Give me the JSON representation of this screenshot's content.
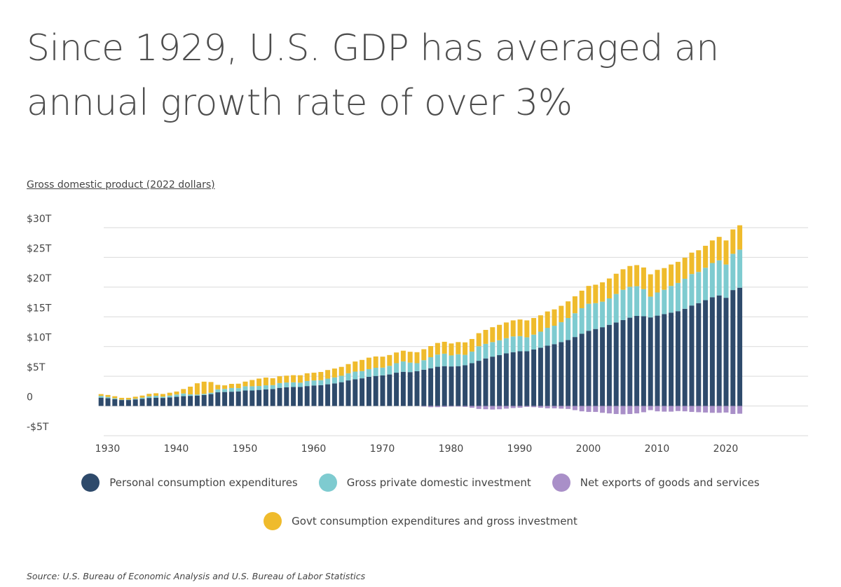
{
  "header": {
    "title": "Since 1929, U.S. GDP has averaged an annual growth rate of over 3%",
    "subtitle": "Gross domestic product (2022 dollars)"
  },
  "footer": {
    "source": "Source: U.S. Bureau of Economic Analysis and U.S. Bureau of Labor Statistics"
  },
  "colors": {
    "pce": "#2e4a6b",
    "investment": "#7ecbd0",
    "net_exports": "#a98fc8",
    "govt": "#efbb2c",
    "grid": "#d9d9d9",
    "axis_text": "#444444"
  },
  "chart_data": {
    "type": "bar",
    "stacked": true,
    "y_tick_labels": [
      "$30T",
      "$25T",
      "$20T",
      "$15T",
      "$10T",
      "$5T",
      "0",
      "-$5T"
    ],
    "y_tick_values": [
      30,
      25,
      20,
      15,
      10,
      5,
      0,
      -5
    ],
    "x_tick_labels": [
      "1930",
      "1940",
      "1950",
      "1960",
      "1970",
      "1980",
      "1990",
      "2000",
      "2010",
      "2020"
    ],
    "x_tick_values": [
      1930,
      1940,
      1950,
      1960,
      1970,
      1980,
      1990,
      2000,
      2010,
      2020
    ],
    "xlim": [
      1924,
      2032
    ],
    "ylim": [
      -5,
      30
    ],
    "grid": true,
    "legend_position": "bottom",
    "x": [
      1929,
      1930,
      1931,
      1932,
      1933,
      1934,
      1935,
      1936,
      1937,
      1938,
      1939,
      1940,
      1941,
      1942,
      1943,
      1944,
      1945,
      1946,
      1947,
      1948,
      1949,
      1950,
      1951,
      1952,
      1953,
      1954,
      1955,
      1956,
      1957,
      1958,
      1959,
      1960,
      1961,
      1962,
      1963,
      1964,
      1965,
      1966,
      1967,
      1968,
      1969,
      1970,
      1971,
      1972,
      1973,
      1974,
      1975,
      1976,
      1977,
      1978,
      1979,
      1980,
      1981,
      1982,
      1983,
      1984,
      1985,
      1986,
      1987,
      1988,
      1989,
      1990,
      1991,
      1992,
      1993,
      1994,
      1995,
      1996,
      1997,
      1998,
      1999,
      2000,
      2001,
      2002,
      2003,
      2004,
      2005,
      2006,
      2007,
      2008,
      2009,
      2010,
      2011,
      2012,
      2013,
      2014,
      2015,
      2016,
      2017,
      2018,
      2019,
      2020,
      2021,
      2022
    ],
    "series": [
      {
        "name": "Personal consumption expenditures",
        "color_key": "pce",
        "values": [
          1.4,
          1.3,
          1.15,
          1.0,
          1.0,
          1.1,
          1.2,
          1.35,
          1.4,
          1.35,
          1.45,
          1.55,
          1.65,
          1.7,
          1.75,
          1.85,
          2.0,
          2.3,
          2.35,
          2.4,
          2.45,
          2.6,
          2.6,
          2.7,
          2.8,
          2.85,
          3.05,
          3.15,
          3.2,
          3.2,
          3.35,
          3.45,
          3.5,
          3.65,
          3.8,
          4.0,
          4.3,
          4.5,
          4.65,
          4.9,
          5.05,
          5.15,
          5.3,
          5.6,
          5.75,
          5.7,
          5.85,
          6.1,
          6.35,
          6.6,
          6.7,
          6.65,
          6.7,
          6.85,
          7.2,
          7.6,
          8.0,
          8.3,
          8.55,
          8.85,
          9.05,
          9.2,
          9.2,
          9.5,
          9.8,
          10.15,
          10.4,
          10.75,
          11.1,
          11.6,
          12.15,
          12.65,
          12.95,
          13.25,
          13.65,
          14.05,
          14.45,
          14.85,
          15.15,
          15.1,
          14.9,
          15.2,
          15.45,
          15.7,
          15.95,
          16.35,
          16.9,
          17.3,
          17.8,
          18.3,
          18.6,
          18.2,
          19.5,
          19.9
        ]
      },
      {
        "name": "Gross private domestic investment",
        "color_key": "investment",
        "values": [
          0.3,
          0.22,
          0.15,
          0.06,
          0.07,
          0.12,
          0.2,
          0.27,
          0.32,
          0.22,
          0.3,
          0.38,
          0.45,
          0.25,
          0.17,
          0.19,
          0.23,
          0.5,
          0.52,
          0.62,
          0.55,
          0.72,
          0.72,
          0.66,
          0.68,
          0.66,
          0.8,
          0.8,
          0.78,
          0.72,
          0.85,
          0.85,
          0.84,
          0.95,
          1.0,
          1.08,
          1.2,
          1.28,
          1.22,
          1.3,
          1.38,
          1.3,
          1.45,
          1.6,
          1.75,
          1.6,
          1.35,
          1.6,
          1.85,
          2.05,
          2.1,
          1.85,
          2.0,
          1.75,
          1.95,
          2.45,
          2.45,
          2.45,
          2.5,
          2.55,
          2.65,
          2.55,
          2.35,
          2.5,
          2.7,
          3.0,
          3.1,
          3.35,
          3.7,
          4.0,
          4.3,
          4.55,
          4.35,
          4.3,
          4.45,
          4.8,
          5.1,
          5.2,
          5.0,
          4.55,
          3.5,
          3.9,
          4.1,
          4.5,
          4.75,
          5.05,
          5.3,
          5.25,
          5.45,
          5.75,
          5.9,
          5.6,
          6.1,
          6.4
        ]
      },
      {
        "name": "Net exports of goods and services",
        "color_key": "net_exports",
        "values": [
          0.0,
          0.0,
          0.0,
          0.0,
          0.0,
          0.0,
          0.0,
          0.0,
          0.0,
          0.0,
          0.0,
          0.0,
          0.0,
          0.0,
          0.0,
          0.0,
          0.0,
          0.0,
          0.0,
          0.0,
          0.0,
          0.0,
          0.0,
          0.0,
          0.0,
          0.0,
          0.0,
          0.0,
          0.0,
          0.0,
          0.0,
          0.0,
          0.0,
          0.0,
          0.0,
          0.0,
          0.0,
          0.0,
          0.0,
          0.0,
          0.0,
          0.0,
          0.0,
          0.0,
          0.0,
          0.0,
          0.0,
          -0.1,
          -0.2,
          -0.2,
          -0.15,
          -0.1,
          -0.1,
          -0.15,
          -0.3,
          -0.5,
          -0.55,
          -0.6,
          -0.55,
          -0.45,
          -0.35,
          -0.3,
          -0.15,
          -0.2,
          -0.3,
          -0.4,
          -0.4,
          -0.45,
          -0.5,
          -0.7,
          -0.9,
          -1.0,
          -1.0,
          -1.15,
          -1.25,
          -1.35,
          -1.4,
          -1.35,
          -1.25,
          -1.05,
          -0.7,
          -0.9,
          -0.95,
          -0.95,
          -0.85,
          -0.9,
          -1.0,
          -1.05,
          -1.1,
          -1.15,
          -1.15,
          -1.1,
          -1.35,
          -1.3
        ]
      },
      {
        "name": "Govt consumption expenditures and gross investment",
        "color_key": "govt",
        "values": [
          0.3,
          0.33,
          0.34,
          0.31,
          0.3,
          0.34,
          0.35,
          0.42,
          0.42,
          0.45,
          0.48,
          0.5,
          0.75,
          1.3,
          1.9,
          2.05,
          1.8,
          0.75,
          0.6,
          0.7,
          0.75,
          0.78,
          1.05,
          1.25,
          1.3,
          1.15,
          1.15,
          1.15,
          1.2,
          1.25,
          1.3,
          1.3,
          1.38,
          1.45,
          1.5,
          1.5,
          1.55,
          1.7,
          1.88,
          1.93,
          1.9,
          1.85,
          1.82,
          1.8,
          1.8,
          1.82,
          1.85,
          1.85,
          1.88,
          1.95,
          2.0,
          2.02,
          2.05,
          2.1,
          2.12,
          2.2,
          2.35,
          2.5,
          2.6,
          2.65,
          2.7,
          2.8,
          2.85,
          2.8,
          2.75,
          2.75,
          2.75,
          2.75,
          2.8,
          2.85,
          2.95,
          3.0,
          3.1,
          3.25,
          3.35,
          3.4,
          3.45,
          3.5,
          3.55,
          3.65,
          3.75,
          3.8,
          3.65,
          3.6,
          3.55,
          3.55,
          3.6,
          3.65,
          3.7,
          3.8,
          3.95,
          4.05,
          4.1,
          4.1
        ]
      }
    ]
  },
  "legend": [
    {
      "label": "Personal consumption expenditures",
      "color_key": "pce"
    },
    {
      "label": "Gross private domestic investment",
      "color_key": "investment"
    },
    {
      "label": "Net exports of goods and services",
      "color_key": "net_exports"
    },
    {
      "label": "Govt consumption expenditures and gross investment",
      "color_key": "govt"
    }
  ]
}
